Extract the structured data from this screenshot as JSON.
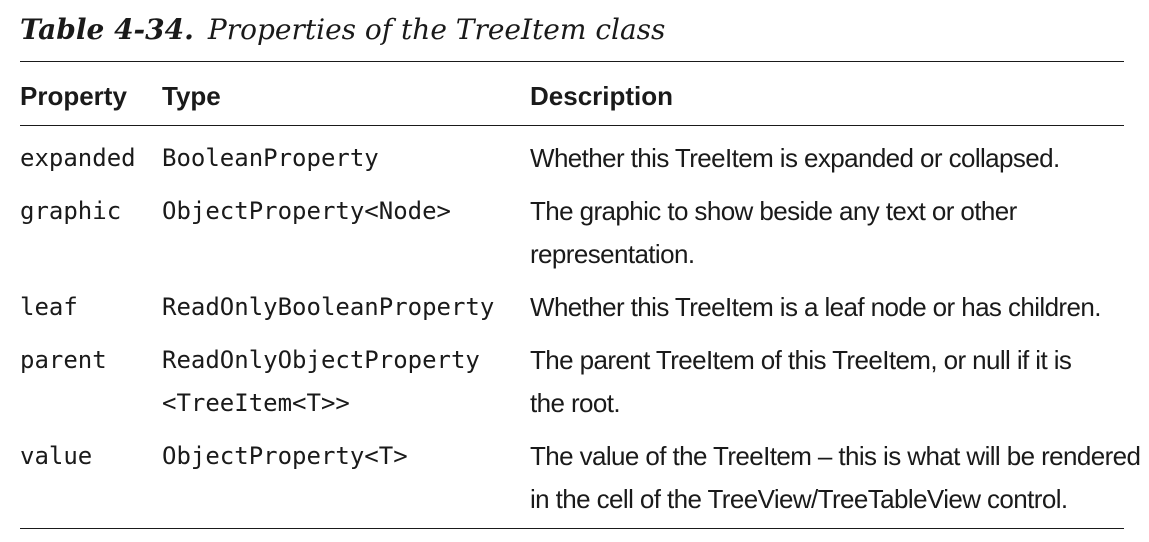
{
  "caption": {
    "number": "Table 4-34.",
    "title": "Properties of the TreeItem class"
  },
  "headers": {
    "property": "Property",
    "type": "Type",
    "description": "Description"
  },
  "rows": [
    {
      "property": "expanded",
      "type_lines": [
        "BooleanProperty"
      ],
      "desc_lines": [
        "Whether this TreeItem is expanded or collapsed."
      ]
    },
    {
      "property": "graphic",
      "type_lines": [
        "ObjectProperty<Node>"
      ],
      "desc_lines": [
        "The graphic to show beside any text or other",
        "representation."
      ]
    },
    {
      "property": "leaf",
      "type_lines": [
        "ReadOnlyBooleanProperty"
      ],
      "desc_lines": [
        "Whether this TreeItem is a leaf node or has children."
      ]
    },
    {
      "property": "parent",
      "type_lines": [
        "ReadOnlyObjectProperty",
        "<TreeItem<T>>"
      ],
      "desc_lines": [
        "The parent TreeItem of this TreeItem, or null if it is",
        "the root."
      ]
    },
    {
      "property": "value",
      "type_lines": [
        "ObjectProperty<T>"
      ],
      "desc_lines": [
        "The value of the TreeItem – this is what will be rendered",
        "in the cell of the TreeView/TreeTableView control."
      ]
    }
  ]
}
